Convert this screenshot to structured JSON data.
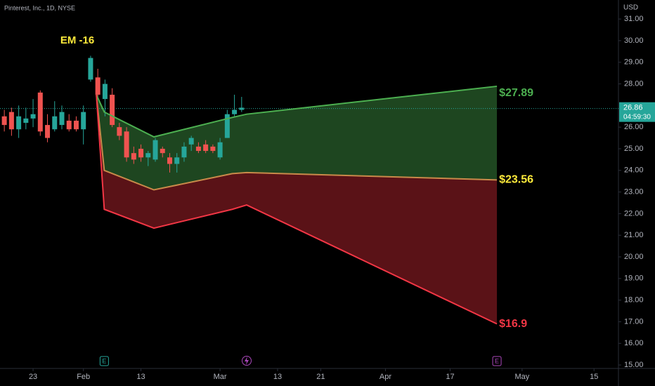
{
  "chart_data": {
    "type": "candlestick",
    "title": "Pinterest, Inc., 1D, NYSE",
    "annotation": "EM -16",
    "currency": "USD",
    "last_price": 26.86,
    "countdown": "04:59:30",
    "events": [
      {
        "x": 13.9,
        "label": "E"
      },
      {
        "x": 68.5,
        "label": "E"
      }
    ],
    "dividend_x": 33.7,
    "up_color": "#26a69a",
    "down_color": "#ef5350",
    "xlim": [
      -0.6,
      85.4
    ],
    "ylim": [
      14.84,
      31.88
    ],
    "xticks": [
      {
        "value": 4,
        "label": "23"
      },
      {
        "value": 11,
        "label": "Feb"
      },
      {
        "value": 19,
        "label": "13"
      },
      {
        "value": 30,
        "label": "Mar"
      },
      {
        "value": 38,
        "label": "13"
      },
      {
        "value": 44,
        "label": "21"
      },
      {
        "value": 53,
        "label": "Apr"
      },
      {
        "value": 62,
        "label": "17"
      },
      {
        "value": 72,
        "label": "May"
      },
      {
        "value": 82,
        "label": "15"
      }
    ],
    "yticks": [
      {
        "value": 15,
        "label": "15.00"
      },
      {
        "value": 16,
        "label": "16.00"
      },
      {
        "value": 17,
        "label": "17.00"
      },
      {
        "value": 18,
        "label": "18.00"
      },
      {
        "value": 19,
        "label": "19.00"
      },
      {
        "value": 20,
        "label": "20.00"
      },
      {
        "value": 21,
        "label": "21.00"
      },
      {
        "value": 22,
        "label": "22.00"
      },
      {
        "value": 23,
        "label": "23.00"
      },
      {
        "value": 24,
        "label": "24.00"
      },
      {
        "value": 25,
        "label": "25.00"
      },
      {
        "value": 26,
        "label": "26.00"
      },
      {
        "value": 28,
        "label": "28.00"
      },
      {
        "value": 29,
        "label": "29.00"
      },
      {
        "value": 30,
        "label": "30.00"
      },
      {
        "value": 31,
        "label": "31.00"
      }
    ],
    "candles": {
      "x": [
        0,
        1,
        2,
        3,
        4,
        5,
        6,
        7,
        8,
        9,
        10,
        11,
        12,
        13,
        14,
        15,
        16,
        17,
        18,
        19,
        20,
        21,
        22,
        23,
        24,
        25,
        26,
        27,
        28,
        29,
        30,
        31,
        32,
        33
      ],
      "open": [
        26.5,
        26.7,
        25.9,
        26.2,
        26.4,
        27.6,
        26.1,
        25.9,
        26.1,
        26.3,
        26.3,
        25.9,
        28.2,
        28.3,
        27.3,
        27.5,
        26.0,
        25.8,
        24.8,
        25.0,
        24.6,
        24.5,
        25.0,
        24.6,
        24.3,
        24.6,
        25.2,
        25.1,
        25.2,
        25.1,
        24.6,
        25.5,
        26.6,
        26.8
      ],
      "high": [
        26.8,
        26.9,
        27.0,
        26.9,
        27.3,
        27.7,
        26.6,
        27.2,
        27.0,
        26.6,
        26.5,
        27.0,
        29.3,
        28.7,
        28.2,
        27.8,
        26.2,
        26.0,
        25.1,
        25.2,
        24.9,
        25.5,
        25.1,
        24.8,
        24.8,
        25.3,
        25.6,
        25.3,
        25.4,
        25.2,
        25.5,
        26.8,
        27.5,
        27.4
      ],
      "low": [
        25.8,
        25.6,
        25.5,
        25.9,
        26.0,
        25.6,
        25.3,
        25.8,
        25.9,
        25.8,
        25.8,
        25.2,
        28.1,
        27.3,
        26.5,
        26.0,
        25.4,
        24.4,
        24.3,
        24.4,
        24.2,
        24.4,
        24.6,
        23.9,
        23.9,
        24.4,
        24.9,
        24.8,
        24.8,
        24.8,
        24.5,
        25.5,
        26.5,
        26.7
      ],
      "close": [
        26.1,
        25.9,
        26.5,
        26.4,
        26.6,
        25.8,
        25.5,
        26.5,
        26.7,
        25.9,
        25.9,
        26.7,
        29.2,
        27.5,
        28.0,
        26.1,
        25.6,
        24.6,
        24.5,
        24.6,
        24.8,
        25.4,
        24.8,
        24.3,
        24.6,
        25.1,
        25.5,
        24.9,
        24.9,
        24.9,
        25.3,
        26.6,
        26.8,
        26.9
      ]
    },
    "bands": {
      "x": [
        12.8,
        13.9,
        20.8,
        31.7,
        33.7,
        68.5
      ],
      "series": [
        {
          "color": "#4caf50",
          "values": [
            27.5,
            26.7,
            25.55,
            26.45,
            26.6,
            27.89
          ],
          "value_labels": [
            null,
            null,
            null,
            null,
            null,
            "$27.89"
          ]
        },
        {
          "color": "#c98a4a",
          "values": [
            27.5,
            24.0,
            23.1,
            23.85,
            23.9,
            23.56
          ],
          "value_labels": [
            null,
            null,
            null,
            null,
            null,
            "$23.56"
          ]
        },
        {
          "color": "#f23645",
          "values": [
            27.5,
            22.2,
            21.33,
            22.2,
            22.4,
            16.9
          ],
          "value_labels": [
            null,
            null,
            null,
            null,
            null,
            "$16.9"
          ]
        }
      ],
      "label_colors": [
        "#4caf50",
        "#ffeb3b",
        "#f23645"
      ]
    }
  }
}
